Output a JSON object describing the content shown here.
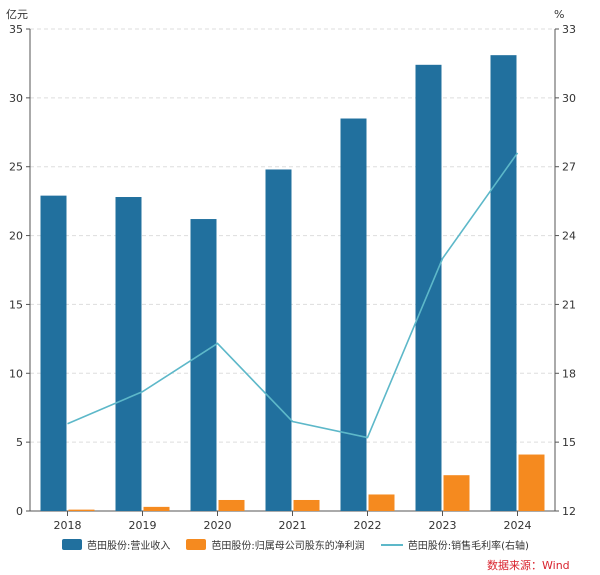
{
  "chart_data": {
    "type": "bar",
    "categories": [
      "2018",
      "2019",
      "2020",
      "2021",
      "2022",
      "2023",
      "2024"
    ],
    "series": [
      {
        "name": "芭田股份:营业收入",
        "axis": "left",
        "kind": "bar",
        "color": "#21709e",
        "values": [
          22.9,
          22.8,
          21.2,
          24.8,
          28.5,
          32.4,
          33.1
        ]
      },
      {
        "name": "芭田股份:归属母公司股东的净利润",
        "axis": "left",
        "kind": "bar",
        "color": "#f58a1f",
        "values": [
          0.1,
          0.3,
          0.8,
          0.8,
          1.2,
          2.6,
          4.1
        ]
      },
      {
        "name": "芭田股份:销售毛利率(右轴)",
        "axis": "right",
        "kind": "line",
        "color": "#5db8c9",
        "values": [
          15.8,
          17.2,
          19.3,
          15.9,
          15.2,
          23.0,
          27.6
        ]
      }
    ],
    "y_left": {
      "unit": "亿元",
      "ylim": [
        0,
        35
      ],
      "ticks": [
        0,
        5,
        10,
        15,
        20,
        25,
        30,
        35
      ]
    },
    "y_right": {
      "unit": "%",
      "ylim": [
        12,
        33
      ],
      "ticks": [
        12,
        15,
        18,
        21,
        24,
        27,
        30,
        33
      ]
    },
    "grid": true,
    "legend": "bottom"
  },
  "source_text": "数据来源：Wind"
}
